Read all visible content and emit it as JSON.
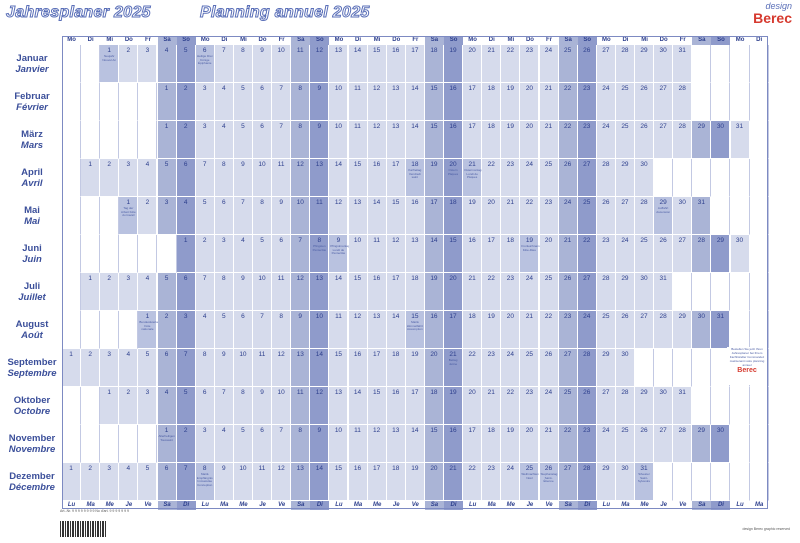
{
  "titles": {
    "de": "Jahresplaner 2025",
    "fr": "Planning annuel 2025"
  },
  "logo": {
    "design": "design",
    "brand": "Berec"
  },
  "weekday_header_top": [
    "Mo",
    "Di",
    "Mi",
    "Do",
    "Fr",
    "Sa",
    "So",
    "Mo",
    "Di",
    "Mi",
    "Do",
    "Fr",
    "Sa",
    "So",
    "Mo",
    "Di",
    "Mi",
    "Do",
    "Fr",
    "Sa",
    "So",
    "Mo",
    "Di",
    "Mi",
    "Do",
    "Fr",
    "Sa",
    "So",
    "Mo",
    "Di",
    "Mi",
    "Do",
    "Fr",
    "Sa",
    "So",
    "Mo",
    "Di"
  ],
  "weekday_header_bottom": [
    "Lu",
    "Ma",
    "Me",
    "Je",
    "Ve",
    "Sa",
    "Di",
    "Lu",
    "Ma",
    "Me",
    "Je",
    "Ve",
    "Sa",
    "Di",
    "Lu",
    "Ma",
    "Me",
    "Je",
    "Ve",
    "Sa",
    "Di",
    "Lu",
    "Ma",
    "Me",
    "Je",
    "Ve",
    "Sa",
    "Di",
    "Lu",
    "Ma",
    "Me",
    "Je",
    "Ve",
    "Sa",
    "Di",
    "Lu",
    "Ma"
  ],
  "months": [
    {
      "de": "Januar",
      "fr": "Janvier",
      "num": "1",
      "start": 2,
      "days": 31,
      "notes": {
        "1": "Neujahr\nNouvel An",
        "6": "Heilige Drei Könige\nÉpiphanie"
      }
    },
    {
      "de": "Februar",
      "fr": "Février",
      "num": "2",
      "start": 5,
      "days": 28,
      "notes": {}
    },
    {
      "de": "März",
      "fr": "Mars",
      "num": "3",
      "start": 5,
      "days": 31,
      "notes": {}
    },
    {
      "de": "April",
      "fr": "Avril",
      "num": "4",
      "start": 1,
      "days": 30,
      "notes": {
        "18": "Karfreitag\nVendredi saint",
        "20": "Ostern\nPâques",
        "21": "Ostermontag\nLundi de Pâques"
      }
    },
    {
      "de": "Mai",
      "fr": "Mai",
      "num": "5",
      "start": 3,
      "days": 31,
      "notes": {
        "1": "Tag der Arbeit\nFête du travail",
        "29": "Auffahrt\nAscension"
      }
    },
    {
      "de": "Juni",
      "fr": "Juin",
      "num": "6",
      "start": 6,
      "days": 30,
      "notes": {
        "8": "Pfingsten\nPentecôte",
        "9": "Pfingstmontag\nLundi de Pentecôte",
        "19": "Fronleichnam\nFête-Dieu"
      }
    },
    {
      "de": "Juli",
      "fr": "Juillet",
      "num": "7",
      "start": 1,
      "days": 31,
      "notes": {}
    },
    {
      "de": "August",
      "fr": "Août",
      "num": "8",
      "start": 4,
      "days": 31,
      "notes": {
        "1": "Bundesfeiertag\nFête nationale",
        "15": "Mariä Himmelfahrt\nAssomption"
      }
    },
    {
      "de": "September",
      "fr": "Septembre",
      "num": "9",
      "start": 0,
      "days": 30,
      "notes": {
        "21": "Bettag\nJeûne"
      }
    },
    {
      "de": "Oktober",
      "fr": "Octobre",
      "num": "10",
      "start": 2,
      "days": 31,
      "notes": {}
    },
    {
      "de": "November",
      "fr": "Novembre",
      "num": "11",
      "start": 5,
      "days": 30,
      "notes": {
        "1": "Allerheiligen\nToussaint"
      }
    },
    {
      "de": "Dezember",
      "fr": "Décembre",
      "num": "12",
      "start": 0,
      "days": 31,
      "notes": {
        "8": "Mariä Empfängnis\nImmaculée Conception",
        "25": "Weihnachten\nNoël",
        "26": "Stephanstag\nSaint-Étienne",
        "31": "Silvester\nSaint-Sylvestre"
      }
    }
  ],
  "side_note": {
    "text": "Bestellen Sie jetzt Ihren Jahresplaner bei Ihrem Fachhändler\nCommandez maintenant votre planning annuel",
    "brand": "Berec"
  },
  "footer": {
    "left": "Art.-Nr. 9 9 9 9 9 9 9 9\nNo d'art. 9 9 9 9 9 9 9",
    "right": "design Berec\ngraphic reserved"
  }
}
